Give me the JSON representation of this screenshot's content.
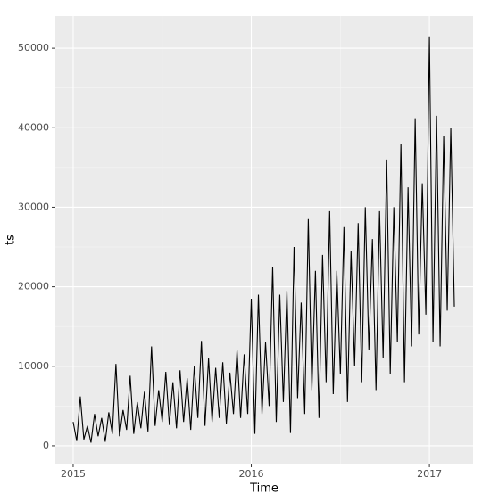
{
  "chart_data": {
    "type": "line",
    "x_label": "Time",
    "y_label": "ts",
    "x": [
      2015.0,
      2015.02,
      2015.04,
      2015.06,
      2015.08,
      2015.1,
      2015.12,
      2015.14,
      2015.16,
      2015.18,
      2015.2,
      2015.22,
      2015.24,
      2015.26,
      2015.28,
      2015.3,
      2015.32,
      2015.34,
      2015.36,
      2015.38,
      2015.4,
      2015.42,
      2015.44,
      2015.46,
      2015.48,
      2015.5,
      2015.52,
      2015.54,
      2015.56,
      2015.58,
      2015.6,
      2015.62,
      2015.64,
      2015.66,
      2015.68,
      2015.7,
      2015.72,
      2015.74,
      2015.76,
      2015.78,
      2015.8,
      2015.82,
      2015.84,
      2015.86,
      2015.88,
      2015.9,
      2015.92,
      2015.94,
      2015.96,
      2015.98,
      2016.0,
      2016.02,
      2016.04,
      2016.06,
      2016.08,
      2016.1,
      2016.12,
      2016.14,
      2016.16,
      2016.18,
      2016.2,
      2016.22,
      2016.24,
      2016.26,
      2016.28,
      2016.3,
      2016.32,
      2016.34,
      2016.36,
      2016.38,
      2016.4,
      2016.42,
      2016.44,
      2016.46,
      2016.48,
      2016.5,
      2016.52,
      2016.54,
      2016.56,
      2016.58,
      2016.6,
      2016.62,
      2016.64,
      2016.66,
      2016.68,
      2016.7,
      2016.72,
      2016.74,
      2016.76,
      2016.78,
      2016.8,
      2016.82,
      2016.84,
      2016.86,
      2016.88,
      2016.9,
      2016.92,
      2016.94,
      2016.96,
      2016.98,
      2017.0,
      2017.02,
      2017.04,
      2017.06,
      2017.08,
      2017.1,
      2017.12,
      2017.14
    ],
    "series": [
      {
        "color": "#000000",
        "values": [
          3000,
          600,
          6200,
          800,
          2500,
          400,
          4000,
          1200,
          3500,
          500,
          4200,
          1500,
          10300,
          1200,
          4500,
          2000,
          8800,
          1500,
          5500,
          2200,
          6800,
          1800,
          12500,
          2500,
          7000,
          3000,
          9300,
          2600,
          8000,
          2200,
          9500,
          3000,
          8500,
          2000,
          10000,
          3500,
          13200,
          2500,
          11000,
          3000,
          9800,
          3500,
          10500,
          2800,
          9200,
          4000,
          12000,
          3500,
          11500,
          4000,
          18500,
          1500,
          19000,
          4000,
          13000,
          5000,
          22500,
          3000,
          19000,
          5500,
          19500,
          1600,
          25000,
          6000,
          18000,
          4000,
          28500,
          7000,
          22000,
          3500,
          24000,
          8000,
          29500,
          6500,
          22000,
          9000,
          27500,
          5500,
          24500,
          10000,
          28000,
          8000,
          30000,
          12000,
          26000,
          7000,
          29500,
          11000,
          36000,
          9000,
          30000,
          13000,
          38000,
          8000,
          32500,
          12500,
          41200,
          14000,
          33000,
          16500,
          51500,
          13000,
          41500,
          12500,
          39000,
          17000,
          40000,
          17500
        ]
      }
    ],
    "xlim": [
      2014.9,
      2017.245
    ],
    "ylim": [
      -2250,
      54050
    ],
    "xticks": [
      2015,
      2016,
      2017
    ],
    "yticks": [
      0,
      10000,
      20000,
      30000,
      40000,
      50000
    ],
    "grid": true
  }
}
